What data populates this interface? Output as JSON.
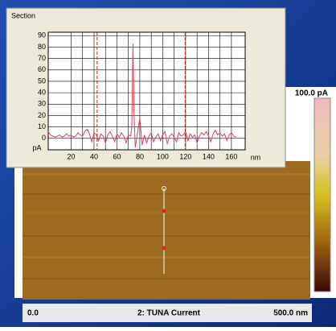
{
  "section": {
    "type": "line",
    "title": "Section",
    "y_unit": "pA",
    "x_unit": "nm",
    "color": "#e0405a",
    "xlim": [
      0,
      172
    ],
    "ylim": [
      -10,
      93
    ],
    "xticks": [
      20,
      40,
      60,
      80,
      100,
      120,
      140,
      160
    ],
    "yticks": [
      0,
      10,
      20,
      30,
      40,
      50,
      60,
      70,
      80,
      90
    ],
    "grid": true,
    "cursors": [
      42.7,
      119.6
    ],
    "x": [
      0,
      2,
      4,
      6,
      8,
      10,
      12,
      14,
      16,
      18,
      20,
      22,
      24,
      26,
      28,
      30,
      32,
      34,
      36,
      38,
      40,
      42,
      44,
      46,
      48,
      50,
      52,
      54,
      56,
      58,
      60,
      62,
      64,
      66,
      68,
      70,
      72,
      73,
      74,
      75,
      76,
      78,
      80,
      81,
      82,
      84,
      86,
      88,
      90,
      92,
      94,
      96,
      98,
      100,
      102,
      104,
      106,
      108,
      110,
      112,
      114,
      116,
      118,
      120,
      122,
      124,
      126,
      128,
      130,
      132,
      134,
      136,
      138,
      140,
      142,
      144,
      146,
      148,
      150,
      152,
      154,
      156,
      158,
      160,
      162,
      164
    ],
    "values": [
      6,
      3,
      2,
      1,
      2,
      3,
      1,
      2,
      4,
      2,
      3,
      1,
      2,
      5,
      3,
      2,
      6,
      8,
      4,
      -3,
      5,
      3,
      -2,
      4,
      2,
      -4,
      3,
      6,
      2,
      -3,
      4,
      1,
      5,
      2,
      -4,
      3,
      2,
      10,
      83,
      20,
      -8,
      5,
      18,
      6,
      -6,
      3,
      -4,
      2,
      5,
      -3,
      1,
      4,
      -2,
      3,
      6,
      -5,
      2,
      4,
      1,
      -3,
      5,
      2,
      3,
      6,
      -2,
      4,
      1,
      3,
      -4,
      2,
      5,
      3,
      6,
      2,
      -3,
      4,
      7,
      3,
      5,
      2,
      4,
      -2,
      3,
      5,
      2,
      1
    ]
  },
  "image": {
    "scale_max": "100.0 pA",
    "start": "0.0",
    "channel": "2: TUNA Current",
    "scan_size": "500.0 nm"
  }
}
